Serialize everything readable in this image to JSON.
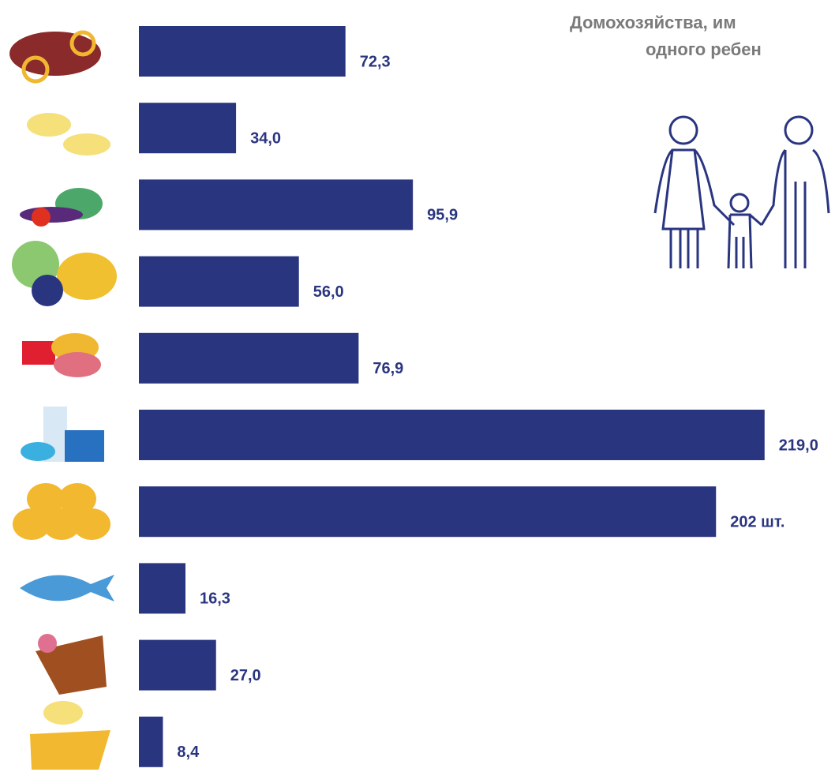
{
  "chart_data": {
    "type": "bar",
    "orientation": "horizontal",
    "title": "Домохозяйства, им",
    "subtitle": "одного ребен",
    "categories": [
      null,
      null,
      null,
      null,
      null,
      null,
      null,
      null,
      null,
      null
    ],
    "values": [
      72.3,
      34.0,
      95.9,
      56.0,
      76.9,
      219.0,
      202,
      16.3,
      27.0,
      8.4
    ],
    "value_labels": [
      "72,3",
      "34,0",
      "95,9",
      "56,0",
      "76,9",
      "219,0",
      "202 шт.",
      "16,3",
      "27,0",
      "8,4"
    ],
    "color": "#2a3580"
  }
}
